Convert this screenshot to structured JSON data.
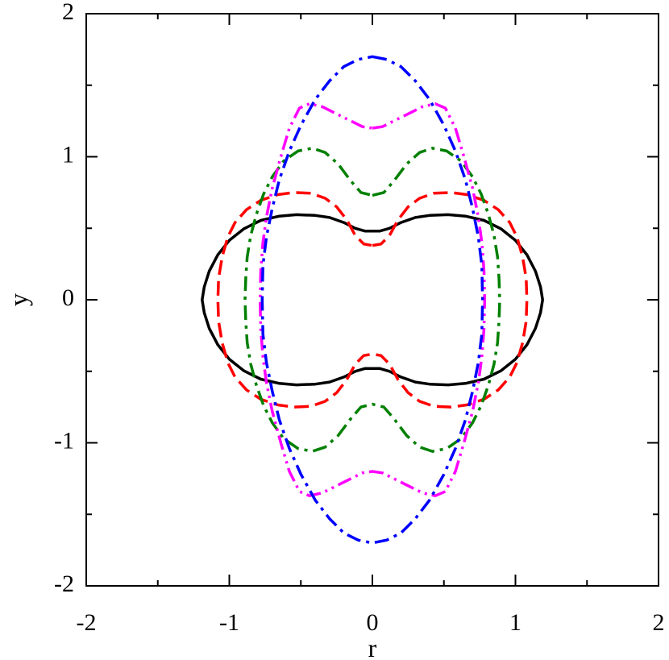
{
  "chart_data": {
    "type": "line",
    "xlabel": "r",
    "ylabel": "y",
    "xlim": [
      -2,
      2
    ],
    "ylim": [
      -2,
      2
    ],
    "xticks": [
      "-2",
      "-1",
      "0",
      "1",
      "2"
    ],
    "yticks": [
      "-2",
      "-1",
      "0",
      "1",
      "2"
    ],
    "grid": false,
    "legend": "none",
    "series": [
      {
        "color": "#000000",
        "dash": "solid",
        "points": [
          [
            0.0,
            0.48
          ],
          [
            0.05,
            0.48
          ],
          [
            0.12,
            0.5
          ],
          [
            0.2,
            0.54
          ],
          [
            0.3,
            0.575
          ],
          [
            0.4,
            0.59
          ],
          [
            0.53,
            0.595
          ],
          [
            0.65,
            0.585
          ],
          [
            0.78,
            0.555
          ],
          [
            0.9,
            0.495
          ],
          [
            1.0,
            0.415
          ],
          [
            1.08,
            0.315
          ],
          [
            1.14,
            0.2
          ],
          [
            1.175,
            0.09
          ],
          [
            1.19,
            0.0
          ]
        ]
      },
      {
        "color": "#ff0000",
        "dash": "dashed",
        "points": [
          [
            0.0,
            0.38
          ],
          [
            0.06,
            0.39
          ],
          [
            0.12,
            0.45
          ],
          [
            0.18,
            0.56
          ],
          [
            0.25,
            0.65
          ],
          [
            0.33,
            0.71
          ],
          [
            0.43,
            0.745
          ],
          [
            0.55,
            0.75
          ],
          [
            0.66,
            0.735
          ],
          [
            0.78,
            0.695
          ],
          [
            0.88,
            0.63
          ],
          [
            0.96,
            0.54
          ],
          [
            1.01,
            0.44
          ],
          [
            1.05,
            0.3
          ],
          [
            1.075,
            0.15
          ],
          [
            1.08,
            0.0
          ]
        ]
      },
      {
        "color": "#008000",
        "dash": "dash-dot",
        "points": [
          [
            0.0,
            0.73
          ],
          [
            0.08,
            0.75
          ],
          [
            0.15,
            0.83
          ],
          [
            0.24,
            0.95
          ],
          [
            0.33,
            1.03
          ],
          [
            0.42,
            1.06
          ],
          [
            0.52,
            1.04
          ],
          [
            0.62,
            0.97
          ],
          [
            0.7,
            0.86
          ],
          [
            0.76,
            0.74
          ],
          [
            0.81,
            0.6
          ],
          [
            0.85,
            0.45
          ],
          [
            0.875,
            0.3
          ],
          [
            0.885,
            0.15
          ],
          [
            0.89,
            0.0
          ]
        ]
      },
      {
        "color": "#ff00ff",
        "dash": "dash-dot-dot",
        "points": [
          [
            0.0,
            1.2
          ],
          [
            0.07,
            1.21
          ],
          [
            0.15,
            1.25
          ],
          [
            0.25,
            1.3
          ],
          [
            0.35,
            1.35
          ],
          [
            0.44,
            1.37
          ],
          [
            0.51,
            1.34
          ],
          [
            0.58,
            1.2
          ],
          [
            0.64,
            1.0
          ],
          [
            0.7,
            0.78
          ],
          [
            0.74,
            0.58
          ],
          [
            0.765,
            0.4
          ],
          [
            0.78,
            0.2
          ],
          [
            0.785,
            0.0
          ]
        ]
      },
      {
        "color": "#0000ff",
        "dash": "dash-dot",
        "points": [
          [
            0.0,
            1.7
          ],
          [
            0.1,
            1.68
          ],
          [
            0.2,
            1.63
          ],
          [
            0.3,
            1.53
          ],
          [
            0.4,
            1.4
          ],
          [
            0.5,
            1.22
          ],
          [
            0.58,
            1.04
          ],
          [
            0.65,
            0.84
          ],
          [
            0.7,
            0.64
          ],
          [
            0.74,
            0.44
          ],
          [
            0.765,
            0.24
          ],
          [
            0.77,
            0.0
          ]
        ]
      }
    ]
  }
}
